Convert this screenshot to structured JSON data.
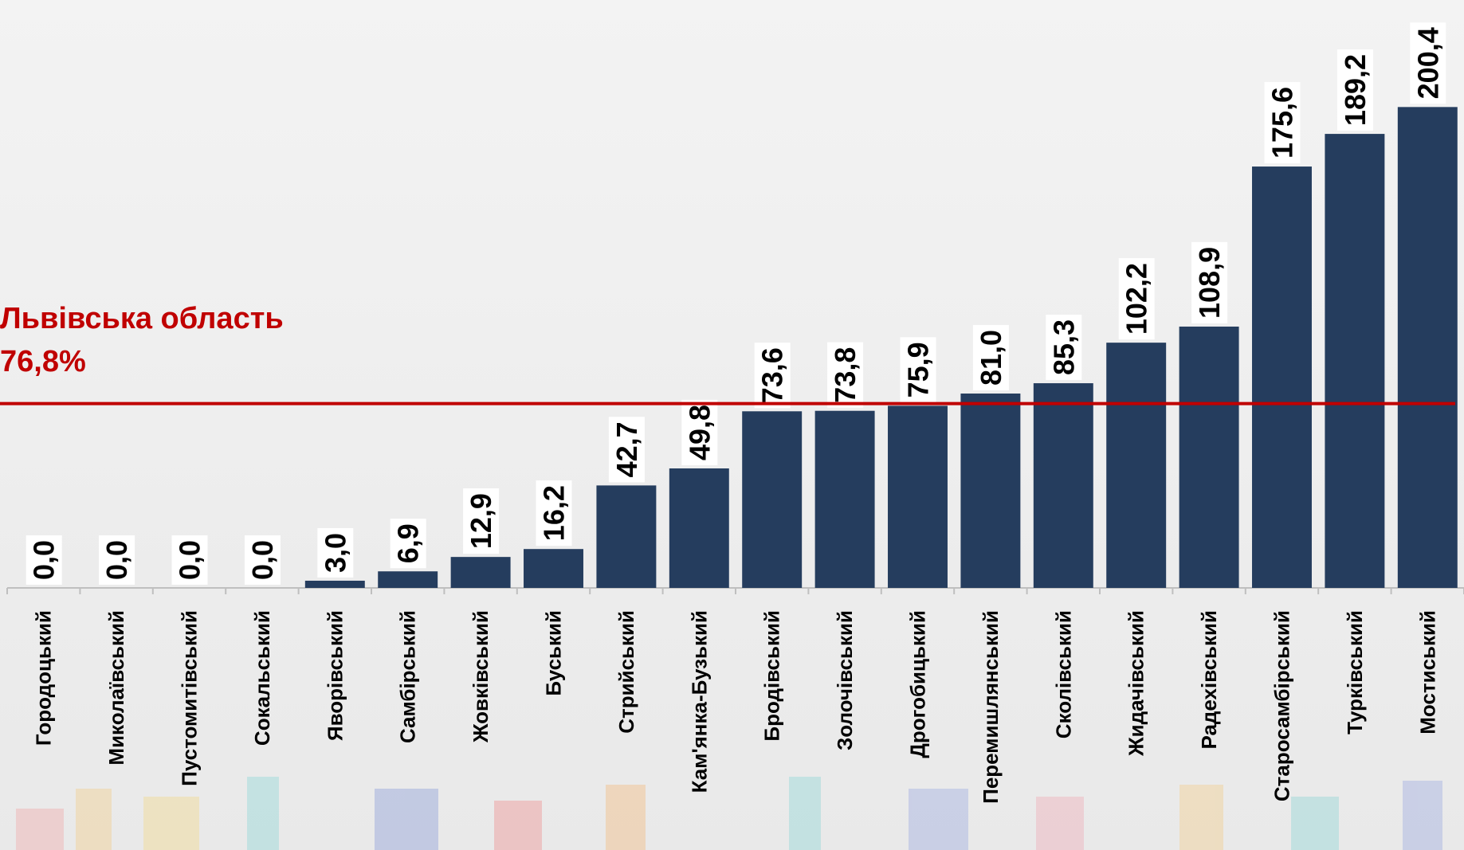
{
  "chart_data": {
    "type": "bar",
    "categories": [
      "Городоцький",
      "Миколаївський",
      "Пустомитівський",
      "Сокальський",
      "Яворівський",
      "Самбірський",
      "Жовківський",
      "Буський",
      "Стрийський",
      "Кам'янка-Бузький",
      "Бродівський",
      "Золочівський",
      "Дрогобицький",
      "Перемишлянський",
      "Сколівський",
      "Жидачівський",
      "Радехівський",
      "Старосамбірський",
      "Турківський",
      "Мостиський"
    ],
    "values": [
      0.0,
      0.0,
      0.0,
      0.0,
      3.0,
      6.9,
      12.9,
      16.2,
      42.7,
      49.8,
      73.6,
      73.8,
      75.9,
      81.0,
      85.3,
      102.2,
      108.9,
      175.6,
      189.2,
      200.4
    ],
    "value_labels": [
      "0,0",
      "0,0",
      "0,0",
      "0,0",
      "3,0",
      "6,9",
      "12,9",
      "16,2",
      "42,7",
      "49,8",
      "73,6",
      "73,8",
      "75,9",
      "81,0",
      "85,3",
      "102,2",
      "108,9",
      "175,6",
      "189,2",
      "200,4"
    ],
    "color": "#253d5e",
    "ylim": [
      0,
      245
    ],
    "reference_line": {
      "value": 76.8,
      "label": "Львівська область",
      "value_label": "76,8%",
      "color": "#c00000"
    }
  }
}
